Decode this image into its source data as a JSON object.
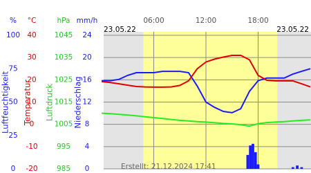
{
  "chart_data": {
    "type": "line",
    "date_left": "23.05.22",
    "date_right": "23.05.22",
    "footer": "Erstellt: 21.12.2024 17:41",
    "xlim": [
      0,
      24
    ],
    "xticks": [
      {
        "value": 6,
        "label": "06:00"
      },
      {
        "value": 12,
        "label": "12:00"
      },
      {
        "value": 18,
        "label": "18:00"
      }
    ],
    "daylight": [
      4.8,
      20.2
    ],
    "grid": true,
    "axes": [
      {
        "title": "Luftfeuchtigkeit",
        "unit": "%",
        "color": "#1a1aff",
        "ylim": [
          0,
          100
        ],
        "yticks": [
          0,
          25,
          50,
          75,
          100
        ]
      },
      {
        "title": "Temperatur",
        "unit": "°C",
        "color": "#e00000",
        "ylim": [
          -20,
          40
        ],
        "yticks": [
          -20,
          -10,
          0,
          10,
          20,
          30,
          40
        ]
      },
      {
        "title": "Luftdruck",
        "unit": "hPa",
        "color": "#22cc22",
        "ylim": [
          985,
          1045
        ],
        "yticks": [
          985,
          995,
          1005,
          1015,
          1025,
          1035,
          1045
        ]
      },
      {
        "title": "Niederschlag",
        "unit": "mm/h",
        "color": "#1a1aff",
        "ylim": [
          0,
          24
        ],
        "yticks": [
          0,
          4,
          8,
          12,
          16,
          20,
          24
        ]
      }
    ],
    "x": [
      0,
      1,
      2,
      3,
      4,
      5,
      6,
      7,
      8,
      9,
      10,
      11,
      12,
      13,
      14,
      15,
      16,
      17,
      18,
      19,
      20,
      21,
      22,
      23,
      24
    ],
    "series": [
      {
        "axis": 0,
        "color": "#1a1aff",
        "values": [
          66,
          66,
          67,
          70,
          72,
          72,
          72,
          73,
          73,
          73,
          72,
          62,
          50,
          46,
          43,
          42,
          45,
          58,
          66,
          68,
          68,
          68,
          71,
          73,
          75
        ]
      },
      {
        "axis": 1,
        "color": "#e00000",
        "values": [
          19.2,
          18.8,
          18.2,
          17.6,
          17.0,
          16.8,
          16.7,
          16.7,
          16.8,
          17.5,
          19.5,
          25,
          28,
          29.3,
          30.2,
          31,
          31,
          29,
          22,
          19.8,
          19.5,
          19.5,
          19.5,
          18.2,
          16.8
        ]
      },
      {
        "axis": 2,
        "color": "#22ee22",
        "values": [
          1010,
          1009.8,
          1009.5,
          1009.2,
          1008.8,
          1008.4,
          1008,
          1007.6,
          1007.2,
          1006.8,
          1006.5,
          1006.2,
          1006,
          1005.7,
          1005.4,
          1005.2,
          1004.8,
          1004.2,
          1005.3,
          1005.8,
          1006,
          1006.2,
          1006.5,
          1006.8,
          1007
        ]
      },
      {
        "axis": 3,
        "type": "bar",
        "color": "#1a1aff",
        "x": [
          16.8,
          17.1,
          17.4,
          17.7,
          18.0,
          22.0,
          22.5,
          23.0
        ],
        "values": [
          2.5,
          4.2,
          4.5,
          3.0,
          0.8,
          0.3,
          0.6,
          0.3
        ]
      }
    ]
  }
}
